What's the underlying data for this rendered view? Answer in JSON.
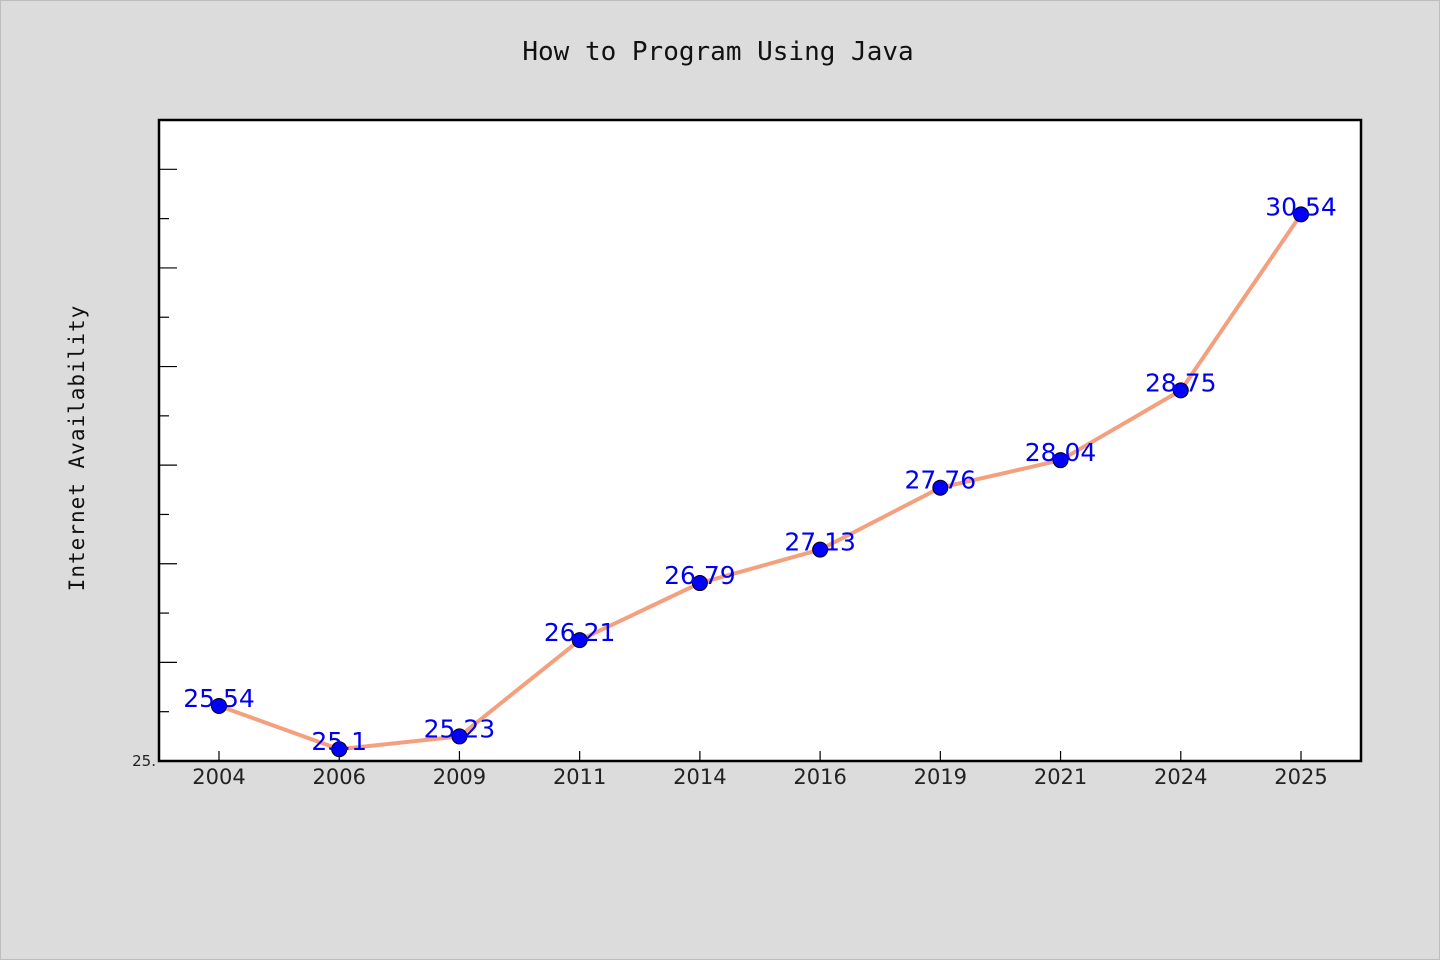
{
  "chart_data": {
    "type": "line",
    "title": "How to Program Using Java",
    "xlabel": "",
    "ylabel": "Internet Availability",
    "categories": [
      "2004",
      "2006",
      "2009",
      "2011",
      "2014",
      "2016",
      "2019",
      "2021",
      "2024",
      "2025"
    ],
    "series": [
      {
        "values": [
          25.54,
          25.1,
          25.23,
          26.21,
          26.79,
          27.13,
          27.76,
          28.04,
          28.75,
          30.54
        ]
      }
    ],
    "data_labels": [
      "25.54",
      "25.1",
      "25.23",
      "26.21",
      "26.79",
      "27.13",
      "27.76",
      "28.04",
      "28.75",
      "30.54"
    ],
    "ytick_labels": [
      "25."
    ],
    "ylim": [
      24.98,
      31.5
    ],
    "grid": false,
    "colors": {
      "line": "#f4a07e",
      "marker": "#0000ff",
      "data_label": "#0000ee",
      "background": "#dcdcdc",
      "plot_background": "#ffffff"
    }
  }
}
